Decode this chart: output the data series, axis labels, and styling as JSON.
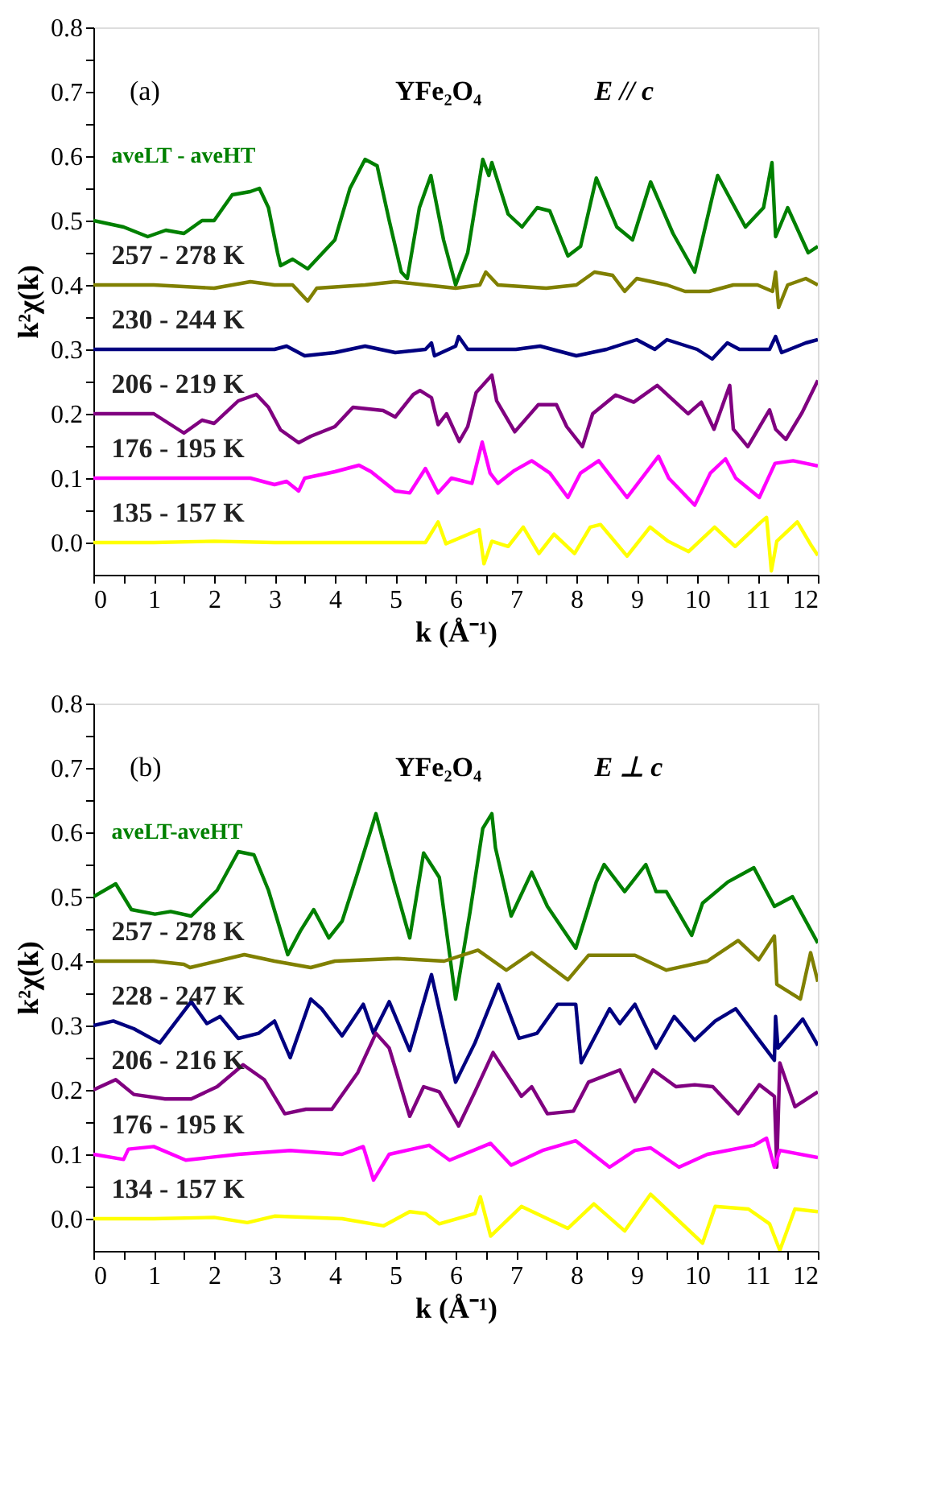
{
  "chart_data": [
    {
      "type": "line",
      "xlabel": "k (Å⁻¹)",
      "ylabel": "k²χ(k)",
      "xlim": [
        0,
        12
      ],
      "ylim": [
        -0.05,
        0.8
      ],
      "xticks": [
        0,
        {
          "value": 0.5,
          "label": null
        },
        1,
        {
          "value": 1.5,
          "label": null
        },
        2,
        {
          "value": 2.5,
          "label": null
        },
        3,
        {
          "value": 3.5,
          "label": null
        },
        4,
        {
          "value": 4.5,
          "label": null
        },
        5,
        {
          "value": 5.5,
          "label": null
        },
        6,
        {
          "value": 6.5,
          "label": null
        },
        7,
        {
          "value": 7.5,
          "label": null
        },
        8,
        {
          "value": 8.5,
          "label": null
        },
        9,
        {
          "value": 9.5,
          "label": null
        },
        10,
        {
          "value": 10.5,
          "label": null
        },
        11,
        {
          "value": 11.5,
          "label": null
        },
        12
      ],
      "yticks": [
        {
          "value": 0,
          "label": "0.0"
        },
        {
          "value": 0.05,
          "label": null
        },
        0.1,
        {
          "value": 0.15,
          "label": null
        },
        0.2,
        {
          "value": 0.25,
          "label": null
        },
        0.3,
        {
          "value": 0.35,
          "label": null
        },
        0.4,
        {
          "value": 0.45,
          "label": null
        },
        0.5,
        {
          "value": 0.55,
          "label": null
        },
        0.6,
        {
          "value": 0.65,
          "label": null
        },
        0.7,
        {
          "value": 0.75,
          "label": null
        },
        0.8
      ],
      "annotations": [
        "(a)",
        "YFe₂O₄",
        "E // c"
      ],
      "series": [
        {
          "name": "aveLT - aveHT",
          "color": "#008000",
          "x": [
            0,
            0.5,
            0.9,
            1.2,
            1.5,
            1.8,
            2.0,
            2.3,
            2.6,
            2.75,
            2.9,
            3.05,
            3.1,
            3.3,
            3.55,
            3.8,
            4.0,
            4.25,
            4.5,
            4.7,
            4.9,
            5.1,
            5.2,
            5.4,
            5.59,
            5.8,
            6.0,
            6.2,
            6.45,
            6.55,
            6.6,
            6.87,
            7.1,
            7.35,
            7.56,
            7.86,
            8.07,
            8.33,
            8.67,
            8.93,
            9.23,
            9.6,
            9.96,
            10.26,
            10.34,
            10.8,
            11.1,
            11.24,
            11.3,
            11.5,
            11.84,
            12
          ],
          "values": [
            0.5,
            0.49,
            0.475,
            0.485,
            0.48,
            0.5,
            0.5,
            0.54,
            0.545,
            0.55,
            0.52,
            0.45,
            0.43,
            0.44,
            0.425,
            0.45,
            0.47,
            0.55,
            0.595,
            0.585,
            0.5,
            0.42,
            0.41,
            0.52,
            0.57,
            0.47,
            0.4,
            0.45,
            0.595,
            0.57,
            0.59,
            0.51,
            0.49,
            0.52,
            0.515,
            0.445,
            0.46,
            0.566,
            0.49,
            0.47,
            0.56,
            0.48,
            0.42,
            0.54,
            0.57,
            0.49,
            0.52,
            0.59,
            0.475,
            0.52,
            0.45,
            0.46
          ]
        },
        {
          "name": "257 - 278 K",
          "color": "#808000",
          "x": [
            0,
            1,
            2,
            2.6,
            3,
            3.3,
            3.55,
            3.7,
            4.5,
            5,
            5.5,
            6,
            6.4,
            6.5,
            6.7,
            7.5,
            8,
            8.3,
            8.6,
            8.8,
            9,
            9.5,
            9.8,
            10.2,
            10.6,
            11,
            11.25,
            11.3,
            11.35,
            11.5,
            11.8,
            12
          ],
          "values": [
            0.4,
            0.4,
            0.395,
            0.405,
            0.4,
            0.4,
            0.375,
            0.395,
            0.4,
            0.405,
            0.4,
            0.395,
            0.4,
            0.42,
            0.4,
            0.395,
            0.4,
            0.42,
            0.415,
            0.39,
            0.41,
            0.4,
            0.39,
            0.39,
            0.4,
            0.4,
            0.39,
            0.42,
            0.365,
            0.4,
            0.41,
            0.4
          ]
        },
        {
          "name": "230 - 244 K",
          "color": "#000080",
          "x": [
            0,
            2,
            3,
            3.2,
            3.5,
            4,
            4.5,
            5,
            5.5,
            5.6,
            5.65,
            6,
            6.05,
            6.2,
            7,
            7.4,
            8,
            8.5,
            9,
            9.3,
            9.5,
            10,
            10.25,
            10.5,
            10.7,
            11.2,
            11.3,
            11.4,
            11.8,
            12
          ],
          "values": [
            0.3,
            0.3,
            0.3,
            0.305,
            0.29,
            0.295,
            0.305,
            0.295,
            0.3,
            0.31,
            0.29,
            0.305,
            0.32,
            0.3,
            0.3,
            0.305,
            0.29,
            0.3,
            0.315,
            0.3,
            0.315,
            0.3,
            0.285,
            0.31,
            0.3,
            0.3,
            0.32,
            0.295,
            0.31,
            0.315
          ]
        },
        {
          "name": "206 - 219 K",
          "color": "#800080",
          "x": [
            0,
            1,
            1.5,
            1.8,
            2,
            2.4,
            2.7,
            2.9,
            3.1,
            3.4,
            3.6,
            4,
            4.3,
            4.8,
            5.0,
            5.3,
            5.41,
            5.6,
            5.71,
            5.85,
            6.06,
            6.2,
            6.34,
            6.6,
            6.68,
            6.98,
            7.37,
            7.67,
            7.84,
            8.1,
            8.27,
            8.65,
            8.95,
            9.34,
            9.85,
            10.07,
            10.28,
            10.54,
            10.6,
            10.84,
            11.2,
            11.3,
            11.47,
            11.74,
            12
          ],
          "values": [
            0.2,
            0.2,
            0.17,
            0.19,
            0.185,
            0.22,
            0.23,
            0.21,
            0.175,
            0.155,
            0.165,
            0.18,
            0.21,
            0.205,
            0.195,
            0.23,
            0.236,
            0.225,
            0.183,
            0.2,
            0.157,
            0.18,
            0.233,
            0.26,
            0.22,
            0.172,
            0.214,
            0.214,
            0.18,
            0.149,
            0.2,
            0.229,
            0.218,
            0.244,
            0.2,
            0.218,
            0.176,
            0.244,
            0.176,
            0.149,
            0.206,
            0.176,
            0.16,
            0.202,
            0.252
          ]
        },
        {
          "name": "176 - 195 K",
          "color": "#ff00ff",
          "x": [
            0,
            1,
            2,
            2.6,
            3,
            3.2,
            3.4,
            3.5,
            4,
            4.4,
            4.6,
            5,
            5.24,
            5.5,
            5.71,
            5.93,
            6.27,
            6.44,
            6.57,
            6.7,
            6.96,
            7.26,
            7.56,
            7.86,
            8.07,
            8.37,
            8.84,
            9.36,
            9.53,
            9.96,
            10.22,
            10.47,
            10.64,
            11.03,
            11.29,
            11.59,
            12
          ],
          "values": [
            0.1,
            0.1,
            0.1,
            0.1,
            0.09,
            0.095,
            0.08,
            0.1,
            0.11,
            0.12,
            0.11,
            0.08,
            0.077,
            0.115,
            0.077,
            0.1,
            0.092,
            0.156,
            0.108,
            0.092,
            0.111,
            0.127,
            0.108,
            0.07,
            0.108,
            0.127,
            0.07,
            0.134,
            0.1,
            0.058,
            0.108,
            0.13,
            0.1,
            0.07,
            0.123,
            0.127,
            0.119
          ]
        },
        {
          "name": "135 - 157 K",
          "color": "#ffff00",
          "x": [
            0,
            1,
            2,
            3,
            4,
            5,
            5.5,
            5.71,
            5.84,
            6.39,
            6.47,
            6.6,
            6.87,
            7.12,
            7.38,
            7.63,
            7.97,
            8.23,
            8.4,
            8.84,
            9.22,
            9.52,
            9.86,
            10.29,
            10.63,
            11.06,
            11.15,
            11.23,
            11.32,
            11.66,
            11.9,
            12
          ],
          "values": [
            0,
            0,
            0.002,
            0,
            0,
            0,
            0,
            0.032,
            -0.002,
            0.02,
            -0.033,
            0.002,
            -0.006,
            0.024,
            -0.017,
            0.013,
            -0.017,
            0.024,
            0.028,
            -0.021,
            0.024,
            0.002,
            -0.014,
            0.024,
            -0.006,
            0.032,
            0.039,
            -0.044,
            0.002,
            0.032,
            -0.006,
            -0.02
          ]
        }
      ]
    },
    {
      "type": "line",
      "xlabel": "k (Å⁻¹)",
      "ylabel": "k²χ(k)",
      "xlim": [
        0,
        12
      ],
      "ylim": [
        -0.05,
        0.8
      ],
      "xticks": [
        0,
        {
          "value": 0.5,
          "label": null
        },
        1,
        {
          "value": 1.5,
          "label": null
        },
        2,
        {
          "value": 2.5,
          "label": null
        },
        3,
        {
          "value": 3.5,
          "label": null
        },
        4,
        {
          "value": 4.5,
          "label": null
        },
        5,
        {
          "value": 5.5,
          "label": null
        },
        6,
        {
          "value": 6.5,
          "label": null
        },
        7,
        {
          "value": 7.5,
          "label": null
        },
        8,
        {
          "value": 8.5,
          "label": null
        },
        9,
        {
          "value": 9.5,
          "label": null
        },
        10,
        {
          "value": 10.5,
          "label": null
        },
        11,
        {
          "value": 11.5,
          "label": null
        },
        12
      ],
      "yticks": [
        {
          "value": 0,
          "label": "0.0"
        },
        {
          "value": 0.05,
          "label": null
        },
        0.1,
        {
          "value": 0.15,
          "label": null
        },
        0.2,
        {
          "value": 0.25,
          "label": null
        },
        0.3,
        {
          "value": 0.35,
          "label": null
        },
        0.4,
        {
          "value": 0.45,
          "label": null
        },
        0.5,
        {
          "value": 0.55,
          "label": null
        },
        0.6,
        {
          "value": 0.65,
          "label": null
        },
        0.7,
        {
          "value": 0.75,
          "label": null
        },
        0.8
      ],
      "annotations": [
        "(b)",
        "YFe₂O₄",
        "E ⊥ c"
      ],
      "series": [
        {
          "name": "aveLT-aveHT",
          "color": "#008000",
          "x": [
            0,
            0.37,
            0.63,
            1.02,
            1.28,
            1.62,
            2.05,
            2.4,
            2.66,
            2.9,
            3.22,
            3.43,
            3.65,
            3.9,
            4.12,
            4.38,
            4.68,
            4.98,
            5.24,
            5.47,
            5.73,
            6.0,
            6.24,
            6.45,
            6.6,
            6.66,
            6.92,
            7.26,
            7.52,
            7.99,
            8.33,
            8.46,
            8.8,
            9.15,
            9.32,
            9.49,
            9.91,
            10.09,
            10.51,
            10.94,
            11.28,
            11.58,
            12
          ],
          "values": [
            0.5,
            0.52,
            0.48,
            0.473,
            0.477,
            0.47,
            0.51,
            0.57,
            0.565,
            0.51,
            0.41,
            0.447,
            0.48,
            0.436,
            0.462,
            0.538,
            0.629,
            0.523,
            0.436,
            0.568,
            0.53,
            0.341,
            0.477,
            0.606,
            0.629,
            0.576,
            0.47,
            0.538,
            0.485,
            0.42,
            0.523,
            0.55,
            0.508,
            0.55,
            0.508,
            0.508,
            0.44,
            0.49,
            0.523,
            0.545,
            0.485,
            0.5,
            0.428
          ]
        },
        {
          "name": "257 - 278 K",
          "color": "#808000",
          "x": [
            0,
            1,
            1.5,
            1.6,
            2.5,
            3,
            3.6,
            4,
            5.04,
            5.81,
            6.37,
            6.84,
            7.26,
            7.86,
            8.2,
            8.97,
            9.49,
            10.17,
            10.68,
            11.02,
            11.28,
            11.32,
            11.71,
            11.88,
            12
          ],
          "values": [
            0.4,
            0.4,
            0.395,
            0.39,
            0.41,
            0.4,
            0.39,
            0.4,
            0.404,
            0.4,
            0.417,
            0.386,
            0.413,
            0.371,
            0.409,
            0.409,
            0.386,
            0.4,
            0.432,
            0.402,
            0.439,
            0.364,
            0.341,
            0.413,
            0.368
          ]
        },
        {
          "name": "228 - 247 K",
          "color": "#000080",
          "x": [
            0,
            0.33,
            0.67,
            1.1,
            1.62,
            1.88,
            2.1,
            2.4,
            2.74,
            3.0,
            3.26,
            3.6,
            3.78,
            4.12,
            4.47,
            4.64,
            4.9,
            5.24,
            5.6,
            6.0,
            6.32,
            6.71,
            7.05,
            7.35,
            7.69,
            7.99,
            8.08,
            8.55,
            8.72,
            8.97,
            9.32,
            9.62,
            9.96,
            10.3,
            10.64,
            11.03,
            11.28,
            11.3,
            11.34,
            11.75,
            12
          ],
          "values": [
            0.3,
            0.307,
            0.295,
            0.273,
            0.337,
            0.303,
            0.314,
            0.28,
            0.288,
            0.307,
            0.25,
            0.341,
            0.326,
            0.284,
            0.333,
            0.288,
            0.337,
            0.261,
            0.379,
            0.212,
            0.273,
            0.364,
            0.28,
            0.288,
            0.333,
            0.333,
            0.242,
            0.326,
            0.303,
            0.333,
            0.265,
            0.314,
            0.277,
            0.307,
            0.326,
            0.277,
            0.246,
            0.314,
            0.265,
            0.31,
            0.269
          ]
        },
        {
          "name": "206 - 216 K",
          "color": "#800080",
          "x": [
            0,
            0.37,
            0.67,
            1.19,
            1.62,
            2.05,
            2.48,
            2.83,
            3.17,
            3.52,
            3.95,
            4.38,
            4.68,
            4.9,
            5.24,
            5.47,
            5.73,
            6.05,
            6.32,
            6.62,
            7.09,
            7.26,
            7.52,
            7.95,
            8.2,
            8.72,
            8.97,
            9.27,
            9.65,
            9.96,
            10.26,
            10.68,
            11.03,
            11.28,
            11.32,
            11.37,
            11.62,
            12
          ],
          "values": [
            0.2,
            0.216,
            0.193,
            0.186,
            0.186,
            0.205,
            0.239,
            0.216,
            0.163,
            0.17,
            0.17,
            0.227,
            0.288,
            0.265,
            0.159,
            0.205,
            0.197,
            0.144,
            0.197,
            0.258,
            0.19,
            0.205,
            0.163,
            0.167,
            0.212,
            0.231,
            0.182,
            0.231,
            0.205,
            0.208,
            0.205,
            0.163,
            0.208,
            0.19,
            0.08,
            0.242,
            0.174,
            0.197
          ]
        },
        {
          "name": "176 - 195 K",
          "color": "#ff00ff",
          "x": [
            0,
            0.5,
            0.58,
            1.0,
            1.53,
            2.4,
            3.26,
            4.12,
            4.47,
            4.64,
            4.9,
            5.56,
            5.9,
            6.58,
            6.92,
            7.44,
            7.99,
            8.55,
            8.97,
            9.23,
            9.7,
            10.17,
            10.94,
            11.15,
            11.28,
            11.37,
            12
          ],
          "values": [
            0.1,
            0.092,
            0.108,
            0.112,
            0.091,
            0.1,
            0.106,
            0.1,
            0.112,
            0.06,
            0.1,
            0.114,
            0.091,
            0.117,
            0.083,
            0.106,
            0.121,
            0.08,
            0.106,
            0.11,
            0.08,
            0.1,
            0.114,
            0.125,
            0.08,
            0.106,
            0.095
          ]
        },
        {
          "name": "134 - 157 K",
          "color": "#ffff00",
          "x": [
            0,
            1,
            2,
            2.55,
            3,
            4.12,
            4.81,
            5.24,
            5.5,
            5.73,
            6.32,
            6.41,
            6.58,
            7.09,
            7.52,
            7.86,
            8.29,
            8.8,
            9.23,
            9.57,
            10.09,
            10.3,
            10.85,
            11.2,
            11.37,
            11.62,
            12
          ],
          "values": [
            0,
            0,
            0.002,
            -0.006,
            0.004,
            0,
            -0.011,
            0.011,
            0.008,
            -0.008,
            0.008,
            0.034,
            -0.027,
            0.019,
            0,
            -0.015,
            0.023,
            -0.019,
            0.038,
            0.008,
            -0.038,
            0.019,
            0.015,
            -0.008,
            -0.049,
            0.015,
            0.011
          ]
        }
      ]
    }
  ]
}
